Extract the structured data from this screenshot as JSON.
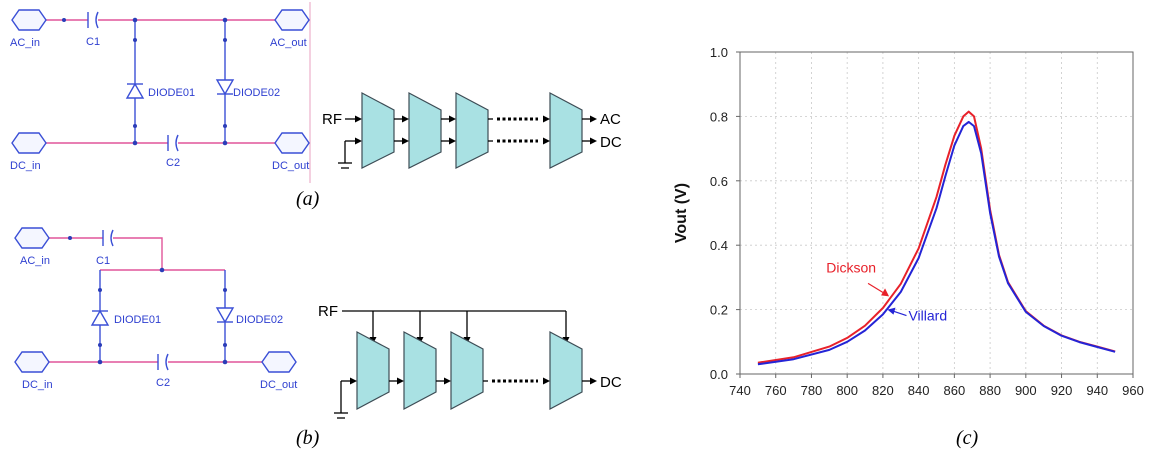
{
  "figure": {
    "captions": {
      "a": "(a)",
      "b": "(b)",
      "c": "(c)"
    }
  },
  "schematic_a": {
    "ports": {
      "ac_in": "AC_in",
      "ac_out": "AC_out",
      "dc_in": "DC_in",
      "dc_out": "DC_out"
    },
    "components": {
      "c1": "C1",
      "c2": "C2",
      "diode1": "DIODE01",
      "diode2": "DIODE02"
    }
  },
  "schematic_b": {
    "ports": {
      "ac_in": "AC_in",
      "dc_in": "DC_in",
      "dc_out": "DC_out"
    },
    "components": {
      "c1": "C1",
      "c2": "C2",
      "diode1": "DIODE01",
      "diode2": "DIODE02"
    }
  },
  "block_a": {
    "input": "RF",
    "outputs": {
      "ac": "AC",
      "dc": "DC"
    }
  },
  "block_b": {
    "input": "RF",
    "output": "DC"
  },
  "colors": {
    "stage_fill": "#a9e1e3",
    "wire": "#e0559a",
    "component": "#3a4fd6",
    "dickson": "#e8212a",
    "villard": "#2424d6"
  },
  "chart_data": {
    "type": "line",
    "title": "",
    "xlabel": "",
    "ylabel": "Vout (V)",
    "xlim": [
      740,
      960
    ],
    "ylim": [
      0.0,
      1.0
    ],
    "xticks": [
      740,
      760,
      780,
      800,
      820,
      840,
      860,
      880,
      900,
      920,
      940,
      960
    ],
    "yticks": [
      "0.0",
      "0.2",
      "0.4",
      "0.6",
      "0.8",
      "1.0"
    ],
    "grid": true,
    "series": [
      {
        "name": "Dickson",
        "color": "#e8212a",
        "x": [
          750,
          770,
          790,
          800,
          810,
          820,
          830,
          840,
          850,
          855,
          860,
          865,
          868,
          871,
          875,
          880,
          885,
          890,
          900,
          910,
          920,
          930,
          940,
          950
        ],
        "y": [
          0.035,
          0.052,
          0.085,
          0.112,
          0.15,
          0.205,
          0.28,
          0.39,
          0.55,
          0.65,
          0.74,
          0.8,
          0.815,
          0.8,
          0.7,
          0.51,
          0.37,
          0.285,
          0.195,
          0.15,
          0.12,
          0.1,
          0.085,
          0.07
        ]
      },
      {
        "name": "Villard",
        "color": "#2424d6",
        "x": [
          750,
          770,
          790,
          800,
          810,
          820,
          830,
          840,
          850,
          855,
          860,
          865,
          868,
          871,
          875,
          880,
          885,
          890,
          900,
          910,
          920,
          930,
          940,
          950
        ],
        "y": [
          0.03,
          0.046,
          0.075,
          0.1,
          0.135,
          0.185,
          0.255,
          0.36,
          0.515,
          0.615,
          0.71,
          0.77,
          0.783,
          0.77,
          0.685,
          0.5,
          0.365,
          0.282,
          0.193,
          0.149,
          0.119,
          0.099,
          0.084,
          0.069
        ]
      }
    ],
    "annotations": [
      {
        "text": "Dickson",
        "target_x": 824,
        "target_y": 0.235,
        "color": "#e8212a"
      },
      {
        "text": "Villard",
        "target_x": 822,
        "target_y": 0.2,
        "color": "#2424d6"
      }
    ]
  }
}
